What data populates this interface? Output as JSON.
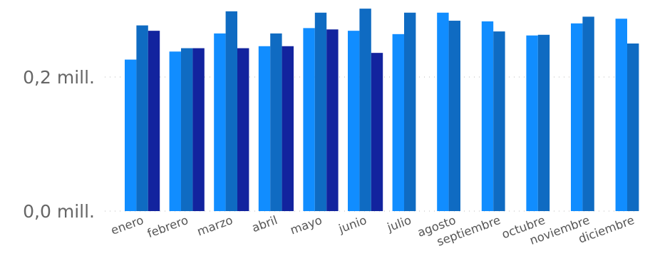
{
  "chart_data": {
    "type": "bar",
    "categories": [
      "enero",
      "febrero",
      "marzo",
      "abril",
      "mayo",
      "junio",
      "julio",
      "agosto",
      "septiembre",
      "octubre",
      "noviembre",
      "diciembre"
    ],
    "series": [
      {
        "color": "#118dff",
        "values": [
          0.226,
          0.238,
          0.265,
          0.246,
          0.273,
          0.269,
          0.264,
          0.296,
          0.283,
          0.262,
          0.28,
          0.287
        ]
      },
      {
        "color": "#0f6bc2",
        "values": [
          0.277,
          0.243,
          0.298,
          0.265,
          0.296,
          0.302,
          0.296,
          0.284,
          0.268,
          0.263,
          0.29,
          0.25
        ]
      },
      {
        "color": "#12239e",
        "values": [
          0.269,
          0.243,
          0.243,
          0.246,
          0.271,
          0.236,
          null,
          null,
          null,
          null,
          null,
          null
        ]
      }
    ],
    "yticks": [
      {
        "value": 0.0,
        "label": "0,0 mill."
      },
      {
        "value": 0.2,
        "label": "0,2 mill."
      }
    ],
    "ylim": [
      0,
      0.32
    ],
    "grid": true,
    "title": "",
    "xlabel": "",
    "ylabel": ""
  }
}
